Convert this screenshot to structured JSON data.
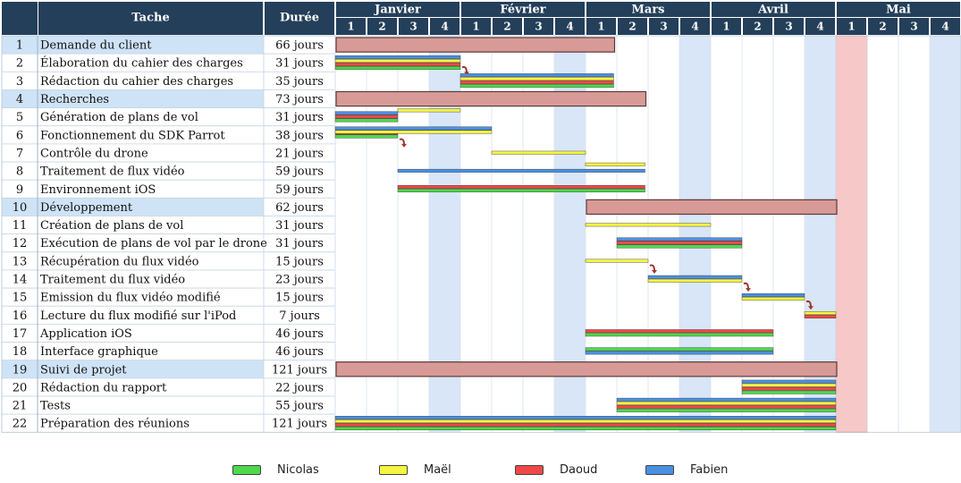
{
  "header": {
    "task_col": "Tache",
    "duration_col": "Durée"
  },
  "months": [
    {
      "label": "Janvier",
      "weeks": [
        "1",
        "2",
        "3",
        "4"
      ]
    },
    {
      "label": "Février",
      "weeks": [
        "1",
        "2",
        "3",
        "4"
      ]
    },
    {
      "label": "Mars",
      "weeks": [
        "1",
        "2",
        "3",
        "4"
      ]
    },
    {
      "label": "Avril",
      "weeks": [
        "1",
        "2",
        "3",
        "4"
      ]
    },
    {
      "label": "Mai",
      "weeks": [
        "1",
        "2",
        "3",
        "4"
      ]
    }
  ],
  "people": [
    {
      "key": "nicolas",
      "name": "Nicolas",
      "color": "#4cd94c"
    },
    {
      "key": "mael",
      "name": "Maël",
      "color": "#f5f542"
    },
    {
      "key": "daoud",
      "name": "Daoud",
      "color": "#f04848"
    },
    {
      "key": "fabien",
      "name": "Fabien",
      "color": "#4a90e2"
    }
  ],
  "colors": {
    "header_bg": "#243f5a",
    "group_row_bg": "#cfe3f7",
    "group_bar": "#d89a96",
    "weekend_shade": "#d9e6f7",
    "deadline": "#f6c8c8",
    "arrow": "#a0352c"
  },
  "tasks": [
    {
      "id": "1",
      "name": "Demande du client",
      "duration": "66 jours",
      "group": true,
      "start": 0,
      "end": 8.9
    },
    {
      "id": "2",
      "name": "Élaboration du cahier des charges",
      "duration": "31 jours",
      "group": false,
      "start": 0,
      "end": 4,
      "assignees": [
        "fabien",
        "mael",
        "daoud",
        "nicolas"
      ],
      "arrow": true
    },
    {
      "id": "3",
      "name": "Rédaction du cahier des charges",
      "duration": "35 jours",
      "group": false,
      "start": 4,
      "end": 8.9,
      "assignees": [
        "fabien",
        "mael",
        "daoud",
        "nicolas"
      ]
    },
    {
      "id": "4",
      "name": "Recherches",
      "duration": "73 jours",
      "group": true,
      "start": 0,
      "end": 9.9
    },
    {
      "id": "5",
      "name": "Génération de plans de vol",
      "duration": "31 jours",
      "group": false,
      "start": 0,
      "end": 2,
      "assignees": [
        "fabien",
        "daoud",
        "nicolas"
      ],
      "extra": [
        {
          "who": "mael",
          "start": 2,
          "end": 4
        }
      ]
    },
    {
      "id": "6",
      "name": "Fonctionnement du SDK Parrot",
      "duration": "38 jours",
      "group": false,
      "start": 0,
      "end": 2,
      "assignees": [
        "daoud",
        "nicolas"
      ],
      "extra": [
        {
          "who": "fabien",
          "start": 0,
          "end": 5
        },
        {
          "who": "mael",
          "start": 0,
          "end": 5
        }
      ],
      "arrow": true
    },
    {
      "id": "7",
      "name": "Contrôle du drone",
      "duration": "21 jours",
      "group": false,
      "start": 5,
      "end": 8,
      "assignees": [
        "mael"
      ]
    },
    {
      "id": "8",
      "name": "Traitement de flux vidéo",
      "duration": "59 jours",
      "group": false,
      "start": 2,
      "end": 9.9,
      "assignees": [
        "fabien"
      ],
      "extra": [
        {
          "who": "mael",
          "start": 8,
          "end": 9.9
        }
      ]
    },
    {
      "id": "9",
      "name": "Environnement iOS",
      "duration": "59 jours",
      "group": false,
      "start": 2,
      "end": 9.9,
      "assignees": [
        "daoud",
        "nicolas"
      ]
    },
    {
      "id": "10",
      "name": "Développement",
      "duration": "62 jours",
      "group": true,
      "start": 8,
      "end": 16
    },
    {
      "id": "11",
      "name": "Création de plans de vol",
      "duration": "31 jours",
      "group": false,
      "start": 8,
      "end": 12,
      "assignees": [
        "mael"
      ]
    },
    {
      "id": "12",
      "name": "Exécution de plans de vol par le drone",
      "duration": "31 jours",
      "group": false,
      "start": 9,
      "end": 13,
      "assignees": [
        "fabien",
        "daoud",
        "nicolas"
      ]
    },
    {
      "id": "13",
      "name": "Récupération du flux vidéo",
      "duration": "15 jours",
      "group": false,
      "start": 8,
      "end": 10,
      "assignees": [
        "mael"
      ],
      "arrow": true
    },
    {
      "id": "14",
      "name": "Traitement du flux vidéo",
      "duration": "23 jours",
      "group": false,
      "start": 10,
      "end": 13,
      "assignees": [
        "fabien",
        "mael"
      ],
      "arrow": true
    },
    {
      "id": "15",
      "name": "Emission du flux vidéo modifié",
      "duration": "15 jours",
      "group": false,
      "start": 13,
      "end": 15,
      "assignees": [
        "fabien",
        "mael"
      ],
      "arrow": true
    },
    {
      "id": "16",
      "name": "Lecture du flux modifié sur l'iPod",
      "duration": "7 jours",
      "group": false,
      "start": 15,
      "end": 16,
      "assignees": [
        "mael",
        "daoud"
      ]
    },
    {
      "id": "17",
      "name": "Application iOS",
      "duration": "46 jours",
      "group": false,
      "start": 8,
      "end": 14,
      "assignees": [
        "daoud",
        "nicolas"
      ]
    },
    {
      "id": "18",
      "name": "Interface graphique",
      "duration": "46 jours",
      "group": false,
      "start": 8,
      "end": 14,
      "assignees": [
        "nicolas",
        "fabien"
      ]
    },
    {
      "id": "19",
      "name": "Suivi de projet",
      "duration": "121 jours",
      "group": true,
      "start": 0,
      "end": 16
    },
    {
      "id": "20",
      "name": "Rédaction du rapport",
      "duration": "22 jours",
      "group": false,
      "start": 13,
      "end": 16,
      "assignees": [
        "fabien",
        "mael",
        "daoud",
        "nicolas"
      ]
    },
    {
      "id": "21",
      "name": "Tests",
      "duration": "55 jours",
      "group": false,
      "start": 9,
      "end": 16,
      "assignees": [
        "fabien",
        "mael",
        "daoud",
        "nicolas"
      ]
    },
    {
      "id": "22",
      "name": "Préparation des réunions",
      "duration": "121 jours",
      "group": false,
      "start": 0,
      "end": 16,
      "assignees": [
        "fabien",
        "mael",
        "daoud",
        "nicolas"
      ]
    }
  ]
}
